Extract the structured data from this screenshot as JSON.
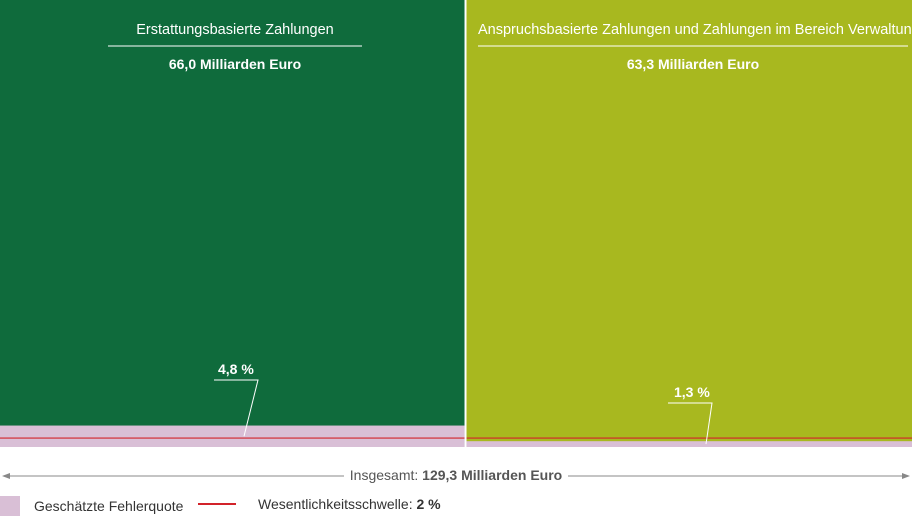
{
  "chart_data": {
    "type": "treemap",
    "segments": [
      {
        "name": "Erstattungsbasierte Zahlungen",
        "value": 66.0,
        "value_label": "66,0 Milliarden Euro",
        "error_rate": 4.8,
        "error_label": "4,8 %",
        "color": "#0f6b3c"
      },
      {
        "name": "Anspruchsbasierte Zahlungen und Zahlungen im Bereich Verwaltung",
        "value": 63.3,
        "value_label": "63,3 Milliarden Euro",
        "error_rate": 1.3,
        "error_label": "1,3 %",
        "color": "#a8b81f"
      }
    ],
    "total_value": 129.3,
    "total_prefix": "Insgesamt:",
    "total_label": "129,3 Milliarden Euro",
    "materiality_threshold": 2,
    "error_color": "#d9bfd6",
    "threshold_color": "#d2232a",
    "legend": {
      "error": "Geschätzte Fehlerquote",
      "threshold_prefix": "Wesentlichkeitsschwelle:",
      "threshold_value": "2 %"
    }
  }
}
